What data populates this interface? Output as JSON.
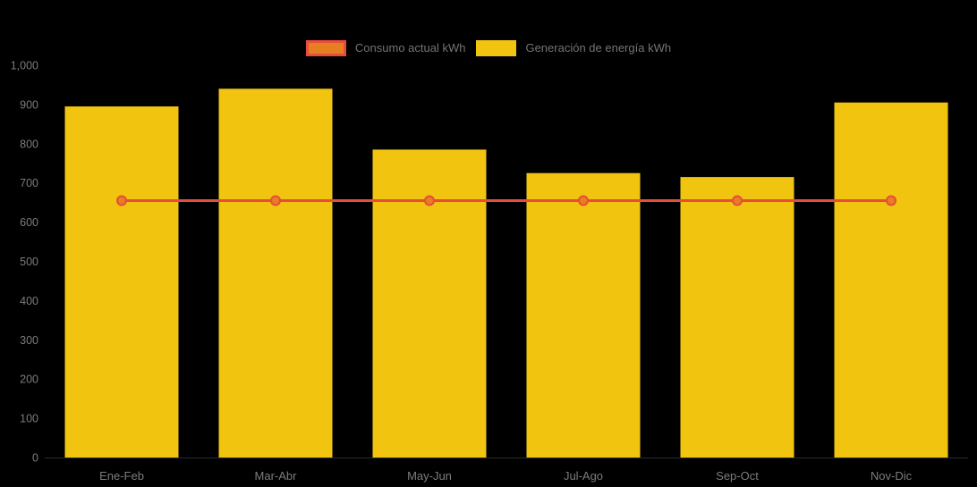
{
  "chart_data": {
    "type": "bar",
    "title": "",
    "categories": [
      "Ene-Feb",
      "Mar-Abr",
      "May-Jun",
      "Jul-Ago",
      "Sep-Oct",
      "Nov-Dic"
    ],
    "series": [
      {
        "name": "Consumo actual kWh",
        "type": "line",
        "values": [
          655,
          655,
          655,
          655,
          655,
          655
        ],
        "color": "#e74c3c",
        "marker_color": "#e67e22"
      },
      {
        "name": "Generación de energía kWh",
        "type": "bar",
        "values": [
          895,
          940,
          785,
          725,
          715,
          905
        ],
        "color": "#f1c40f"
      }
    ],
    "ylabel": "",
    "xlabel": "",
    "ylim": [
      0,
      1000
    ],
    "y_tick_step": 100,
    "y_tick_labels": [
      "0",
      "100",
      "200",
      "300",
      "400",
      "500",
      "600",
      "700",
      "800",
      "900",
      "1,000"
    ],
    "grid": false,
    "legend_position": "top-center",
    "background_color": "#000000",
    "label_color": "#7c7c7c"
  }
}
